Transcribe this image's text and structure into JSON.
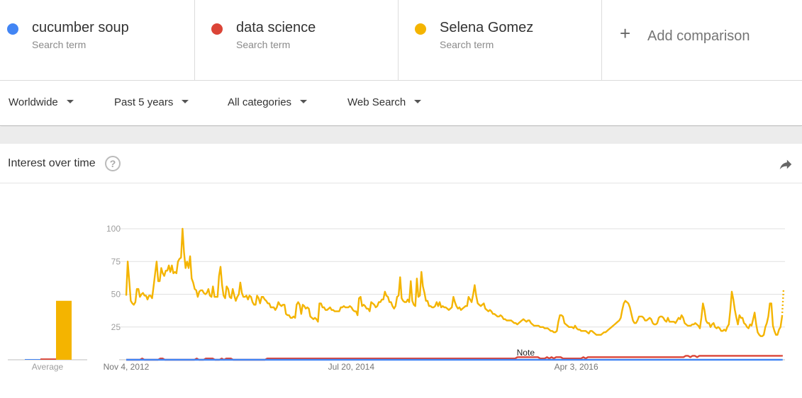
{
  "terms": [
    {
      "name": "cucumber soup",
      "sub": "Search term",
      "color": "#4285f4"
    },
    {
      "name": "data science",
      "sub": "Search term",
      "color": "#db4437"
    },
    {
      "name": "Selena Gomez",
      "sub": "Search term",
      "color": "#f4b400"
    }
  ],
  "add_comparison": {
    "icon": "plus-icon",
    "label": "Add comparison"
  },
  "filters": [
    {
      "label": "Worldwide"
    },
    {
      "label": "Past 5 years"
    },
    {
      "label": "All categories"
    },
    {
      "label": "Web Search"
    }
  ],
  "card": {
    "title": "Interest over time",
    "help_icon": "question-circle-icon",
    "share_icon": "share-icon"
  },
  "chart_data": {
    "type": "line",
    "x_range": [
      "2012-11-04",
      "2017-10-29"
    ],
    "x_tick_labels": [
      "Nov 4, 2012",
      "Jul 20, 2014",
      "Apr 3, 2016"
    ],
    "x_tick_dates": [
      "2012-11-04",
      "2014-07-20",
      "2016-04-03"
    ],
    "ylim": [
      0,
      100
    ],
    "yticks": [
      "100",
      "75",
      "50",
      "25"
    ],
    "grid": true,
    "average_label": "Average",
    "averages": [
      0,
      1,
      45
    ],
    "annotation": {
      "label": "Note",
      "date": "2015-11-15"
    },
    "partial_last_point": true,
    "series": [
      {
        "name": "cucumber soup",
        "color": "#4285f4",
        "values": [
          0,
          0,
          0,
          0,
          0,
          0,
          0,
          0,
          0,
          0,
          0,
          0,
          0,
          0,
          0,
          0,
          0,
          0,
          0,
          0,
          0,
          0,
          0,
          0,
          0,
          0,
          0,
          0,
          0,
          0,
          0,
          0,
          0,
          0,
          0,
          0,
          0,
          0,
          0,
          0,
          0,
          0,
          0,
          0,
          0,
          0,
          0,
          0,
          0,
          0,
          0,
          0,
          0,
          0,
          0,
          0,
          0,
          0,
          0,
          0,
          0,
          0,
          0,
          0,
          0,
          0,
          0,
          0,
          0,
          0,
          0,
          0,
          0,
          0,
          0,
          0,
          0,
          0,
          0,
          0,
          0,
          0,
          0,
          0,
          0,
          0,
          0,
          0,
          0,
          0,
          0,
          0,
          0,
          0,
          0,
          0,
          0,
          0,
          0,
          0,
          0,
          0,
          0,
          0,
          0,
          0,
          0,
          0,
          0,
          0,
          0,
          0,
          0,
          0,
          0,
          0,
          0,
          0,
          0,
          0,
          0,
          0,
          0,
          0,
          0,
          0,
          0,
          0,
          0,
          0,
          0,
          0,
          0,
          0,
          0,
          0,
          0,
          0,
          0,
          0,
          0,
          0,
          0,
          0,
          0,
          0,
          0,
          0,
          0,
          0,
          0,
          0,
          0,
          0,
          0,
          0,
          0,
          0,
          0,
          0,
          0,
          0,
          0,
          0,
          0,
          0,
          0,
          0,
          0,
          0,
          0,
          0,
          0,
          0,
          0,
          0,
          0,
          0,
          0,
          0,
          0,
          0,
          0,
          0,
          0,
          0,
          0,
          0,
          0,
          0,
          0,
          0,
          0,
          0,
          0,
          0,
          0,
          0,
          0,
          0,
          0,
          0,
          0,
          0,
          0,
          0,
          0,
          0,
          0,
          0,
          0,
          0,
          0,
          0,
          0,
          0,
          0,
          0,
          0,
          0,
          0,
          0,
          0,
          0,
          0,
          0,
          0,
          0,
          0,
          0,
          0,
          0,
          0,
          0,
          0,
          0,
          0,
          0,
          0,
          0,
          0,
          0,
          0,
          0,
          0,
          0,
          0,
          0,
          0,
          0,
          0,
          0,
          0,
          0,
          0,
          0,
          0,
          0,
          0,
          0,
          0,
          0,
          0,
          0,
          0,
          0,
          0,
          0,
          0,
          0,
          0,
          0,
          0,
          0,
          0,
          0,
          0,
          0,
          0,
          0,
          0,
          0,
          0
        ]
      },
      {
        "name": "data science",
        "color": "#db4437",
        "values": [
          0,
          0,
          0,
          0,
          0,
          0,
          0,
          1,
          0,
          0,
          0,
          0,
          0,
          0,
          0,
          1,
          1,
          0,
          0,
          0,
          0,
          0,
          0,
          0,
          0,
          0,
          0,
          0,
          0,
          0,
          0,
          1,
          0,
          0,
          0,
          1,
          1,
          1,
          1,
          0,
          0,
          0,
          1,
          0,
          1,
          1,
          1,
          0,
          0,
          0,
          0,
          0,
          0,
          0,
          0,
          0,
          0,
          0,
          0,
          0,
          0,
          0,
          1,
          1,
          1,
          1,
          1,
          1,
          1,
          1,
          1,
          1,
          1,
          1,
          1,
          1,
          1,
          1,
          1,
          1,
          1,
          1,
          1,
          1,
          1,
          1,
          1,
          1,
          1,
          1,
          1,
          1,
          1,
          1,
          1,
          1,
          1,
          1,
          1,
          1,
          1,
          1,
          1,
          1,
          1,
          1,
          1,
          1,
          1,
          1,
          1,
          1,
          1,
          1,
          1,
          1,
          1,
          1,
          1,
          1,
          1,
          1,
          1,
          1,
          1,
          1,
          1,
          1,
          1,
          1,
          1,
          1,
          1,
          1,
          1,
          1,
          1,
          1,
          1,
          1,
          1,
          1,
          1,
          1,
          1,
          1,
          1,
          1,
          1,
          1,
          1,
          1,
          1,
          1,
          1,
          1,
          1,
          1,
          1,
          1,
          1,
          1,
          1,
          1,
          1,
          1,
          1,
          1,
          1,
          1,
          1,
          1,
          2,
          2,
          2,
          2,
          2,
          2,
          2,
          2,
          2,
          2,
          1,
          1,
          1,
          2,
          1,
          2,
          1,
          2,
          2,
          2,
          1,
          1,
          1,
          1,
          1,
          1,
          1,
          1,
          1,
          2,
          1,
          2,
          2,
          2,
          2,
          2,
          2,
          2,
          2,
          2,
          2,
          2,
          2,
          2,
          2,
          2,
          2,
          2,
          2,
          2,
          2,
          2,
          2,
          2,
          2,
          2,
          2,
          2,
          2,
          2,
          2,
          2,
          2,
          2,
          2,
          2,
          2,
          2,
          2,
          2,
          2,
          2,
          2,
          2,
          3,
          3,
          2,
          3,
          3,
          2,
          3,
          3,
          3,
          3,
          3,
          3,
          3,
          3,
          3,
          3,
          3,
          3,
          3,
          3,
          3,
          3,
          3,
          3,
          3,
          3,
          3,
          3,
          3,
          3,
          3,
          3,
          3,
          3,
          3,
          3,
          3,
          3,
          3,
          3,
          3,
          3,
          3,
          3
        ]
      },
      {
        "name": "Selena Gomez",
        "color": "#f4b400",
        "values": [
          49,
          75,
          60,
          45,
          43,
          42,
          44,
          54,
          54,
          48,
          50,
          51,
          49,
          49,
          46,
          49,
          49,
          47,
          56,
          66,
          75,
          60,
          60,
          70,
          66,
          64,
          68,
          68,
          72,
          67,
          72,
          66,
          67,
          66,
          75,
          77,
          78,
          100,
          82,
          70,
          75,
          70,
          79,
          62,
          59,
          54,
          53,
          48,
          52,
          53,
          53,
          51,
          50,
          51,
          54,
          49,
          48,
          56,
          48,
          48,
          48,
          64,
          71,
          57,
          49,
          47,
          56,
          54,
          48,
          47,
          54,
          49,
          45,
          48,
          50,
          59,
          51,
          48,
          48,
          49,
          46,
          49,
          48,
          44,
          42,
          42,
          49,
          47,
          43,
          48,
          48,
          46,
          45,
          43,
          43,
          40,
          40,
          40,
          38,
          40,
          44,
          42,
          41,
          42,
          42,
          35,
          34,
          34,
          32,
          32,
          33,
          32,
          42,
          44,
          42,
          35,
          42,
          41,
          39,
          40,
          39,
          33,
          32,
          31,
          32,
          31,
          29,
          43,
          43,
          40,
          40,
          38,
          38,
          39,
          40,
          38,
          38,
          37,
          37,
          37,
          37,
          40,
          40,
          41,
          40,
          40,
          40,
          41,
          40,
          38,
          37,
          37,
          34,
          47,
          48,
          41,
          42,
          41,
          39,
          39,
          37,
          44,
          43,
          42,
          40,
          41,
          44,
          44,
          46,
          46,
          52,
          49,
          48,
          44,
          44,
          41,
          39,
          41,
          48,
          49,
          63,
          47,
          45,
          44,
          44,
          46,
          44,
          60,
          45,
          42,
          41,
          62,
          48,
          49,
          67,
          56,
          51,
          45,
          45,
          41,
          41,
          40,
          40,
          41,
          44,
          41,
          44,
          40,
          41,
          40,
          40,
          39,
          38,
          39,
          40,
          48,
          44,
          41,
          39,
          40,
          38,
          39,
          40,
          41,
          41,
          48,
          46,
          44,
          50,
          57,
          49,
          43,
          42,
          41,
          42,
          43,
          39,
          38,
          37,
          38,
          37,
          35,
          35,
          34,
          33,
          33,
          34,
          33,
          31,
          31,
          30,
          30,
          30,
          30,
          29,
          28,
          28,
          27,
          28,
          29,
          30,
          31,
          30,
          29,
          30,
          30,
          28,
          27,
          26,
          26,
          26,
          26,
          25,
          25,
          25,
          24,
          24,
          24,
          23,
          22,
          22,
          21,
          21,
          22,
          29,
          34,
          34,
          33,
          28,
          27,
          26,
          25,
          25,
          25,
          24,
          26,
          24,
          23,
          23,
          22,
          22,
          22,
          22,
          21,
          20,
          22,
          22,
          21,
          20,
          19,
          19,
          19,
          19,
          20,
          21,
          21,
          22,
          23,
          24,
          25,
          26,
          27,
          28,
          29,
          30,
          32,
          38,
          43,
          45,
          44,
          43,
          40,
          35,
          30,
          28,
          28,
          30,
          33,
          33,
          33,
          32,
          30,
          30,
          31,
          32,
          31,
          28,
          27,
          27,
          28,
          32,
          33,
          33,
          32,
          30,
          29,
          32,
          29,
          29,
          29,
          29,
          28,
          30,
          32,
          31,
          34,
          32,
          28,
          27,
          26,
          26,
          26,
          27,
          27,
          28,
          27,
          26,
          24,
          32,
          43,
          38,
          30,
          28,
          28,
          25,
          27,
          28,
          25,
          24,
          25,
          24,
          22,
          22,
          23,
          22,
          25,
          27,
          38,
          52,
          46,
          38,
          32,
          27,
          34,
          32,
          32,
          28,
          27,
          25,
          24,
          27,
          26,
          31,
          36,
          27,
          21,
          19,
          18,
          18,
          19,
          25,
          28,
          33,
          43,
          43,
          26,
          22,
          19,
          19,
          23,
          25,
          33,
          54
        ]
      }
    ]
  }
}
